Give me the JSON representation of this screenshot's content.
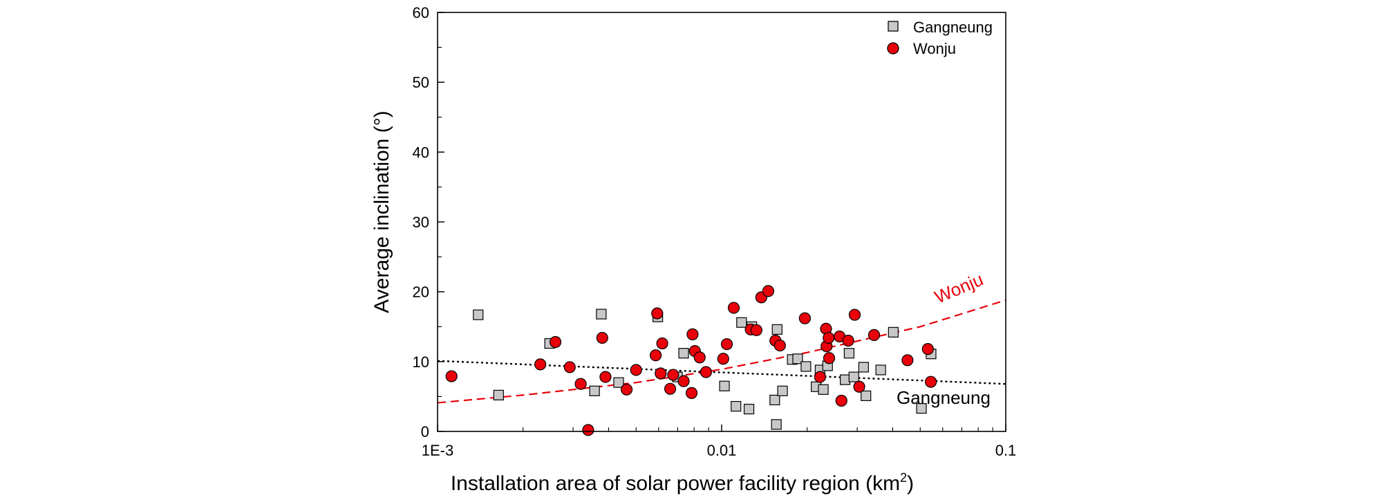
{
  "chart_data": {
    "type": "scatter",
    "xlabel": "Installation area of solar power facility region (km",
    "xlabel_sup": "2",
    "xlabel_end": ")",
    "ylabel": "Average inclination (°)",
    "xscale": "log",
    "xlim": [
      0.001,
      0.1
    ],
    "ylim": [
      0,
      60
    ],
    "xticks": [
      0.001,
      0.01,
      0.1
    ],
    "xtick_labels": [
      "1E-3",
      "0.01",
      "0.1"
    ],
    "yticks": [
      0,
      10,
      20,
      30,
      40,
      50,
      60
    ],
    "ytick_labels": [
      "0",
      "10",
      "20",
      "30",
      "40",
      "50",
      "60"
    ],
    "grid": false,
    "legend_position": "top-right",
    "colors": {
      "gangneung": "#c8c8c8",
      "wonju": "#e8000b",
      "fit_wonju": "#e8000b",
      "fit_gangneung": "#000000"
    },
    "series": [
      {
        "name": "Gangneung",
        "marker": "square",
        "points": [
          [
            0.00139,
            16.7
          ],
          [
            0.00164,
            5.2
          ],
          [
            0.00248,
            12.6
          ],
          [
            0.00357,
            5.8
          ],
          [
            0.00377,
            16.8
          ],
          [
            0.00434,
            7.0
          ],
          [
            0.00596,
            16.4
          ],
          [
            0.00699,
            7.8
          ],
          [
            0.00735,
            11.2
          ],
          [
            0.01023,
            6.5
          ],
          [
            0.01123,
            3.6
          ],
          [
            0.01175,
            15.6
          ],
          [
            0.01248,
            3.2
          ],
          [
            0.01277,
            15.0
          ],
          [
            0.01538,
            4.5
          ],
          [
            0.01558,
            1.0
          ],
          [
            0.01568,
            14.6
          ],
          [
            0.01638,
            5.8
          ],
          [
            0.01772,
            10.3
          ],
          [
            0.01852,
            10.4
          ],
          [
            0.0198,
            9.3
          ],
          [
            0.0215,
            6.4
          ],
          [
            0.0222,
            8.8
          ],
          [
            0.0228,
            6.0
          ],
          [
            0.0236,
            9.4
          ],
          [
            0.0272,
            7.4
          ],
          [
            0.0281,
            11.2
          ],
          [
            0.0292,
            7.8
          ],
          [
            0.0316,
            9.2
          ],
          [
            0.0322,
            5.1
          ],
          [
            0.0363,
            8.8
          ],
          [
            0.0402,
            14.2
          ],
          [
            0.0505,
            3.3
          ],
          [
            0.0546,
            11.1
          ]
        ]
      },
      {
        "name": "Wonju",
        "marker": "circle",
        "points": [
          [
            0.00112,
            7.9
          ],
          [
            0.0023,
            9.6
          ],
          [
            0.0026,
            12.8
          ],
          [
            0.00292,
            9.2
          ],
          [
            0.00319,
            6.8
          ],
          [
            0.00339,
            0.2
          ],
          [
            0.0038,
            13.4
          ],
          [
            0.0039,
            7.8
          ],
          [
            0.00463,
            6.0
          ],
          [
            0.005,
            8.8
          ],
          [
            0.00586,
            10.9
          ],
          [
            0.00593,
            16.9
          ],
          [
            0.0061,
            8.3
          ],
          [
            0.00618,
            12.6
          ],
          [
            0.00659,
            6.1
          ],
          [
            0.00675,
            8.1
          ],
          [
            0.00735,
            7.2
          ],
          [
            0.00784,
            5.5
          ],
          [
            0.0079,
            13.9
          ],
          [
            0.00805,
            11.5
          ],
          [
            0.00837,
            10.6
          ],
          [
            0.00881,
            8.5
          ],
          [
            0.01013,
            10.4
          ],
          [
            0.01043,
            12.5
          ],
          [
            0.01103,
            17.7
          ],
          [
            0.01266,
            14.6
          ],
          [
            0.01326,
            14.5
          ],
          [
            0.01379,
            19.2
          ],
          [
            0.01459,
            20.1
          ],
          [
            0.01546,
            13.0
          ],
          [
            0.01604,
            12.3
          ],
          [
            0.01963,
            16.2
          ],
          [
            0.0222,
            7.8
          ],
          [
            0.0233,
            14.7
          ],
          [
            0.0234,
            12.2
          ],
          [
            0.0238,
            13.4
          ],
          [
            0.0239,
            10.5
          ],
          [
            0.026,
            13.6
          ],
          [
            0.0264,
            4.4
          ],
          [
            0.0279,
            13.0
          ],
          [
            0.0294,
            16.7
          ],
          [
            0.0305,
            6.4
          ],
          [
            0.0344,
            13.8
          ],
          [
            0.0451,
            10.2
          ],
          [
            0.0532,
            11.8
          ],
          [
            0.0545,
            7.1
          ]
        ]
      }
    ],
    "fits": [
      {
        "label": "Wonju",
        "style": "dashed",
        "points": [
          [
            0.001,
            4.1
          ],
          [
            0.002,
            5.2
          ],
          [
            0.005,
            7.0
          ],
          [
            0.01,
            8.9
          ],
          [
            0.02,
            11.3
          ],
          [
            0.05,
            15.0
          ],
          [
            0.1,
            18.8
          ]
        ]
      },
      {
        "label": "Gangneung",
        "style": "dotted",
        "points": [
          [
            0.001,
            10.1
          ],
          [
            0.1,
            6.8
          ]
        ]
      }
    ]
  }
}
